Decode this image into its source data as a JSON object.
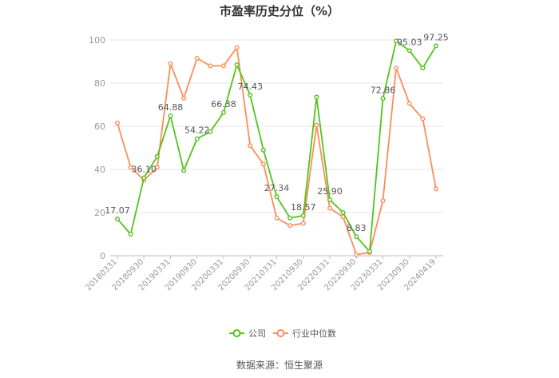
{
  "chart_data": {
    "type": "line",
    "title": "市盈率历史分位（%）",
    "ylim": [
      0,
      100
    ],
    "yticks": [
      "0",
      "20",
      "40",
      "60",
      "80",
      "100"
    ],
    "grid": "horizontal",
    "legend_position": "bottom-center",
    "x": [
      "20180331",
      "20180630",
      "20180930",
      "20181231",
      "20190331",
      "20190630",
      "20190930",
      "20191231",
      "20200331",
      "20200630",
      "20200930",
      "20201231",
      "20210331",
      "20210630",
      "20210930",
      "20211231",
      "20220331",
      "20220630",
      "20220930",
      "20221231",
      "20230331",
      "20230630",
      "20230930",
      "20231231",
      "20240419"
    ],
    "xtick_labels": [
      "20180331",
      "20180930",
      "20190331",
      "20190930",
      "20200331",
      "20200930",
      "20210331",
      "20210930",
      "20220331",
      "20220930",
      "20230331",
      "20230930",
      "20240419"
    ],
    "series": [
      {
        "name": "公司",
        "color": "#52c41a",
        "values": [
          17.07,
          10.0,
          36.1,
          46.0,
          64.88,
          39.5,
          54.22,
          57.5,
          66.38,
          88.5,
          74.43,
          49.0,
          27.34,
          17.5,
          18.57,
          73.5,
          25.9,
          20.0,
          8.83,
          2.0,
          72.86,
          99.5,
          95.03,
          87.0,
          97.25
        ],
        "labels": [
          "17.07",
          null,
          "36.10",
          null,
          "64.88",
          null,
          "54.22",
          null,
          "66.38",
          null,
          "74.43",
          null,
          "27.34",
          null,
          "18.57",
          null,
          "25.90",
          null,
          "8.83",
          null,
          "72.86",
          null,
          "95.03",
          null,
          "97.25"
        ]
      },
      {
        "name": "行业中位数",
        "color": "#ff8c5a",
        "values": [
          61.5,
          41.0,
          35.0,
          41.0,
          89.0,
          73.0,
          91.5,
          88.0,
          88.0,
          96.5,
          51.0,
          42.5,
          17.5,
          14.0,
          15.0,
          60.5,
          22.0,
          18.0,
          0.5,
          1.5,
          25.5,
          87.0,
          70.5,
          63.5,
          31.0
        ]
      }
    ],
    "source": "数据来源：恒生聚源"
  }
}
